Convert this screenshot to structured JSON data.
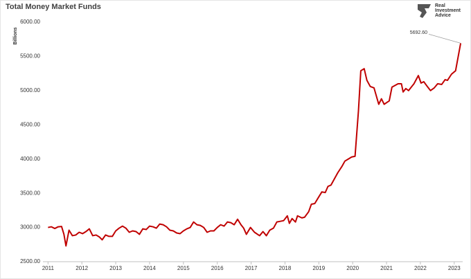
{
  "chart_data": {
    "type": "line",
    "title": "Total Money Market Funds",
    "y_label": "Billions",
    "logo": [
      "Real",
      "Investment",
      "Advice"
    ],
    "annotation": "5692.60",
    "color": "#c00000",
    "grid": false,
    "xlim": [
      2010.85,
      2023.25
    ],
    "xticks": [
      2011,
      2012,
      2013,
      2014,
      2015,
      2016,
      2017,
      2018,
      2019,
      2020,
      2021,
      2022,
      2023
    ],
    "ylim": [
      2500,
      6000
    ],
    "yticks": [
      {
        "value": 2500,
        "label": "2500.00"
      },
      {
        "value": 3000,
        "label": "3000.00"
      },
      {
        "value": 3500,
        "label": "3500.00"
      },
      {
        "value": 4000,
        "label": "4000.00"
      },
      {
        "value": 4500,
        "label": "4500.00"
      },
      {
        "value": 5000,
        "label": "5000.00"
      },
      {
        "value": 5500,
        "label": "5500.00"
      },
      {
        "value": 6000,
        "label": "6000.00"
      }
    ],
    "x": [
      2011.0,
      2011.1,
      2011.2,
      2011.3,
      2011.4,
      2011.47,
      2011.53,
      2011.62,
      2011.72,
      2011.82,
      2011.92,
      2012.02,
      2012.12,
      2012.22,
      2012.32,
      2012.42,
      2012.52,
      2012.6,
      2012.7,
      2012.8,
      2012.9,
      2013.0,
      2013.1,
      2013.2,
      2013.3,
      2013.4,
      2013.5,
      2013.6,
      2013.7,
      2013.8,
      2013.9,
      2014.0,
      2014.1,
      2014.2,
      2014.3,
      2014.4,
      2014.5,
      2014.6,
      2014.7,
      2014.8,
      2014.9,
      2015.0,
      2015.1,
      2015.2,
      2015.3,
      2015.4,
      2015.5,
      2015.6,
      2015.7,
      2015.8,
      2015.9,
      2016.0,
      2016.1,
      2016.2,
      2016.3,
      2016.4,
      2016.5,
      2016.6,
      2016.7,
      2016.78,
      2016.86,
      2016.98,
      2017.1,
      2017.25,
      2017.35,
      2017.45,
      2017.55,
      2017.66,
      2017.76,
      2017.86,
      2017.96,
      2018.07,
      2018.13,
      2018.21,
      2018.31,
      2018.37,
      2018.5,
      2018.58,
      2018.7,
      2018.78,
      2018.88,
      2018.99,
      2019.09,
      2019.19,
      2019.27,
      2019.36,
      2019.46,
      2019.56,
      2019.68,
      2019.77,
      2019.87,
      2019.97,
      2020.07,
      2020.17,
      2020.24,
      2020.34,
      2020.42,
      2020.52,
      2020.63,
      2020.77,
      2020.85,
      2020.93,
      2021.08,
      2021.16,
      2021.34,
      2021.44,
      2021.49,
      2021.57,
      2021.65,
      2021.81,
      2021.94,
      2022.02,
      2022.1,
      2022.22,
      2022.3,
      2022.41,
      2022.51,
      2022.63,
      2022.73,
      2022.8,
      2022.92,
      2023.04,
      2023.19
    ],
    "values": [
      3000,
      3010,
      2985,
      3010,
      3015,
      2900,
      2730,
      2960,
      2880,
      2890,
      2930,
      2910,
      2940,
      2980,
      2880,
      2890,
      2860,
      2820,
      2890,
      2870,
      2870,
      2950,
      2990,
      3020,
      2990,
      2930,
      2950,
      2940,
      2900,
      2980,
      2970,
      3020,
      3010,
      2990,
      3050,
      3040,
      3010,
      2960,
      2950,
      2920,
      2910,
      2950,
      2980,
      3000,
      3080,
      3040,
      3030,
      3000,
      2930,
      2950,
      2950,
      3000,
      3040,
      3020,
      3080,
      3070,
      3040,
      3120,
      3040,
      2990,
      2900,
      3000,
      2930,
      2880,
      2940,
      2880,
      2960,
      2990,
      3080,
      3090,
      3100,
      3170,
      3060,
      3130,
      3080,
      3170,
      3140,
      3150,
      3230,
      3340,
      3350,
      3440,
      3520,
      3510,
      3600,
      3620,
      3710,
      3800,
      3890,
      3970,
      4000,
      4030,
      4040,
      4700,
      5290,
      5320,
      5150,
      5060,
      5040,
      4800,
      4880,
      4800,
      4850,
      5050,
      5100,
      5100,
      4980,
      5030,
      5000,
      5100,
      5220,
      5110,
      5130,
      5050,
      5000,
      5040,
      5100,
      5090,
      5160,
      5150,
      5240,
      5290,
      5692.6
    ]
  }
}
